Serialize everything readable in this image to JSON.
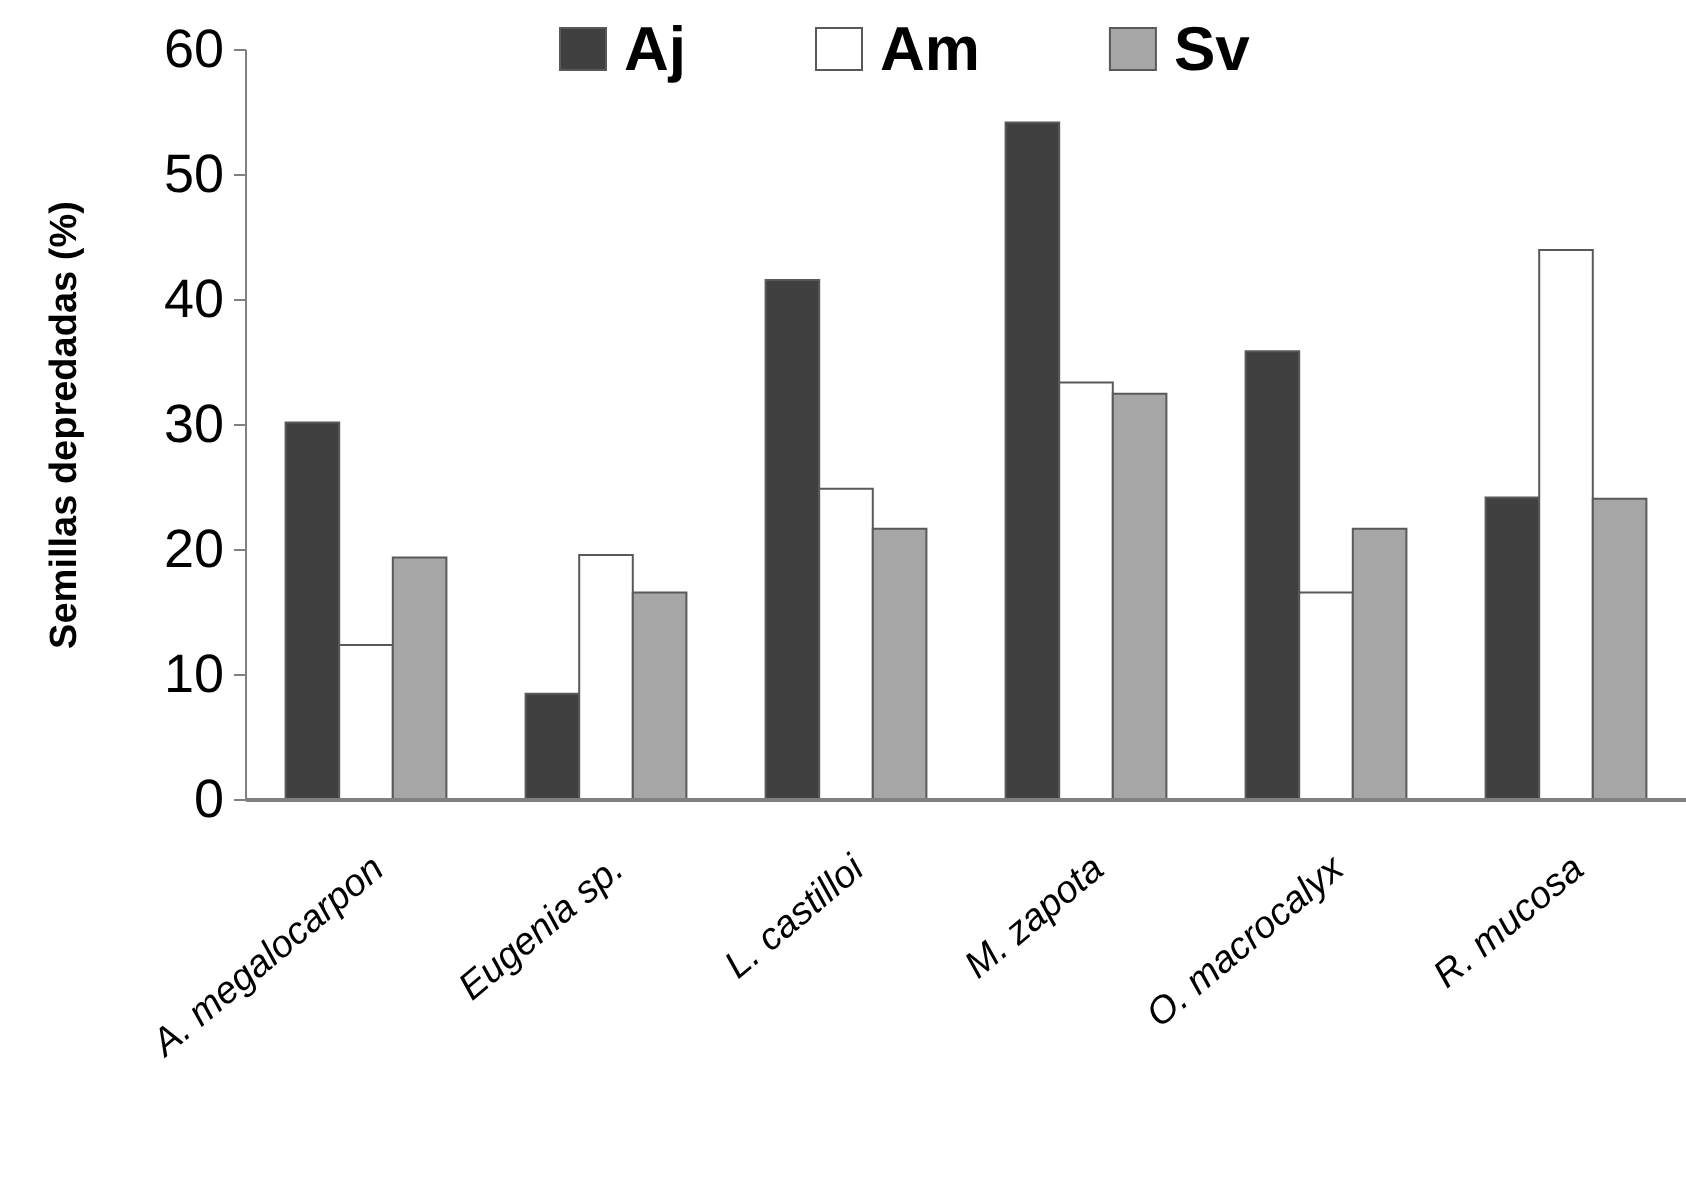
{
  "chart_data": {
    "type": "bar",
    "ylabel": "Semillas depredadas (%)",
    "categories": [
      "A. megalocarpon",
      "Eugenia sp.",
      "L. castilloi",
      "M. zapota",
      "O. macrocalyx",
      "R. mucosa"
    ],
    "series": [
      {
        "name": "Aj",
        "color": "#404040",
        "values": [
          30.2,
          8.5,
          41.6,
          54.2,
          35.9,
          24.2
        ]
      },
      {
        "name": "Am",
        "color": "#ffffff",
        "values": [
          12.4,
          19.6,
          24.9,
          33.4,
          16.6,
          44.0
        ]
      },
      {
        "name": "Sv",
        "color": "#a6a6a6",
        "values": [
          19.4,
          16.6,
          21.7,
          32.5,
          21.7,
          24.1
        ]
      }
    ],
    "ylim": [
      0,
      60
    ],
    "yticks": [
      0,
      10,
      20,
      30,
      40,
      50,
      60
    ],
    "grid": false,
    "legend": "top"
  }
}
